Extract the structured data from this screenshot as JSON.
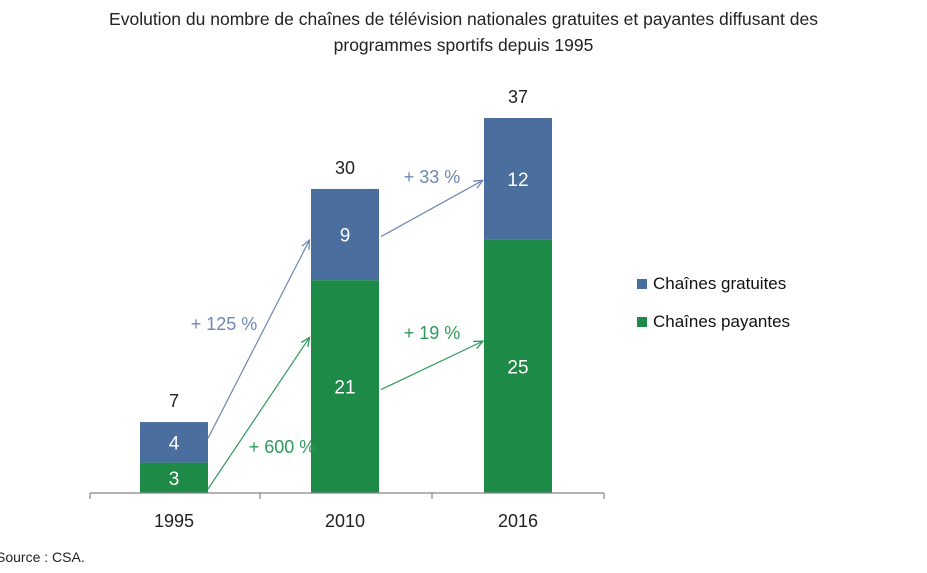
{
  "title_line1": "Evolution du nombre de chaînes de télévision nationales gratuites et payantes diffusant des",
  "title_line2": "programmes sportifs depuis 1995",
  "source": "Source : CSA.",
  "colors": {
    "gratuites": "#4a6e9d",
    "payantes": "#1e8a47",
    "arrow_gratuites": "#6f87b3",
    "arrow_payantes": "#2f9a5a",
    "axis": "#888888"
  },
  "chart_data": {
    "type": "bar",
    "stacked": true,
    "categories": [
      "1995",
      "2010",
      "2016"
    ],
    "series": [
      {
        "name": "Chaînes payantes",
        "values": [
          3,
          21,
          25
        ]
      },
      {
        "name": "Chaînes gratuites",
        "values": [
          4,
          9,
          12
        ]
      }
    ],
    "totals": [
      "7",
      "30",
      "37"
    ],
    "ylim": [
      0,
      37
    ],
    "legend_position": "right",
    "annotations": {
      "gratuites": [
        "+ 125 %",
        "+ 33 %"
      ],
      "payantes": [
        "+ 600 %",
        "+ 19 %"
      ]
    }
  }
}
